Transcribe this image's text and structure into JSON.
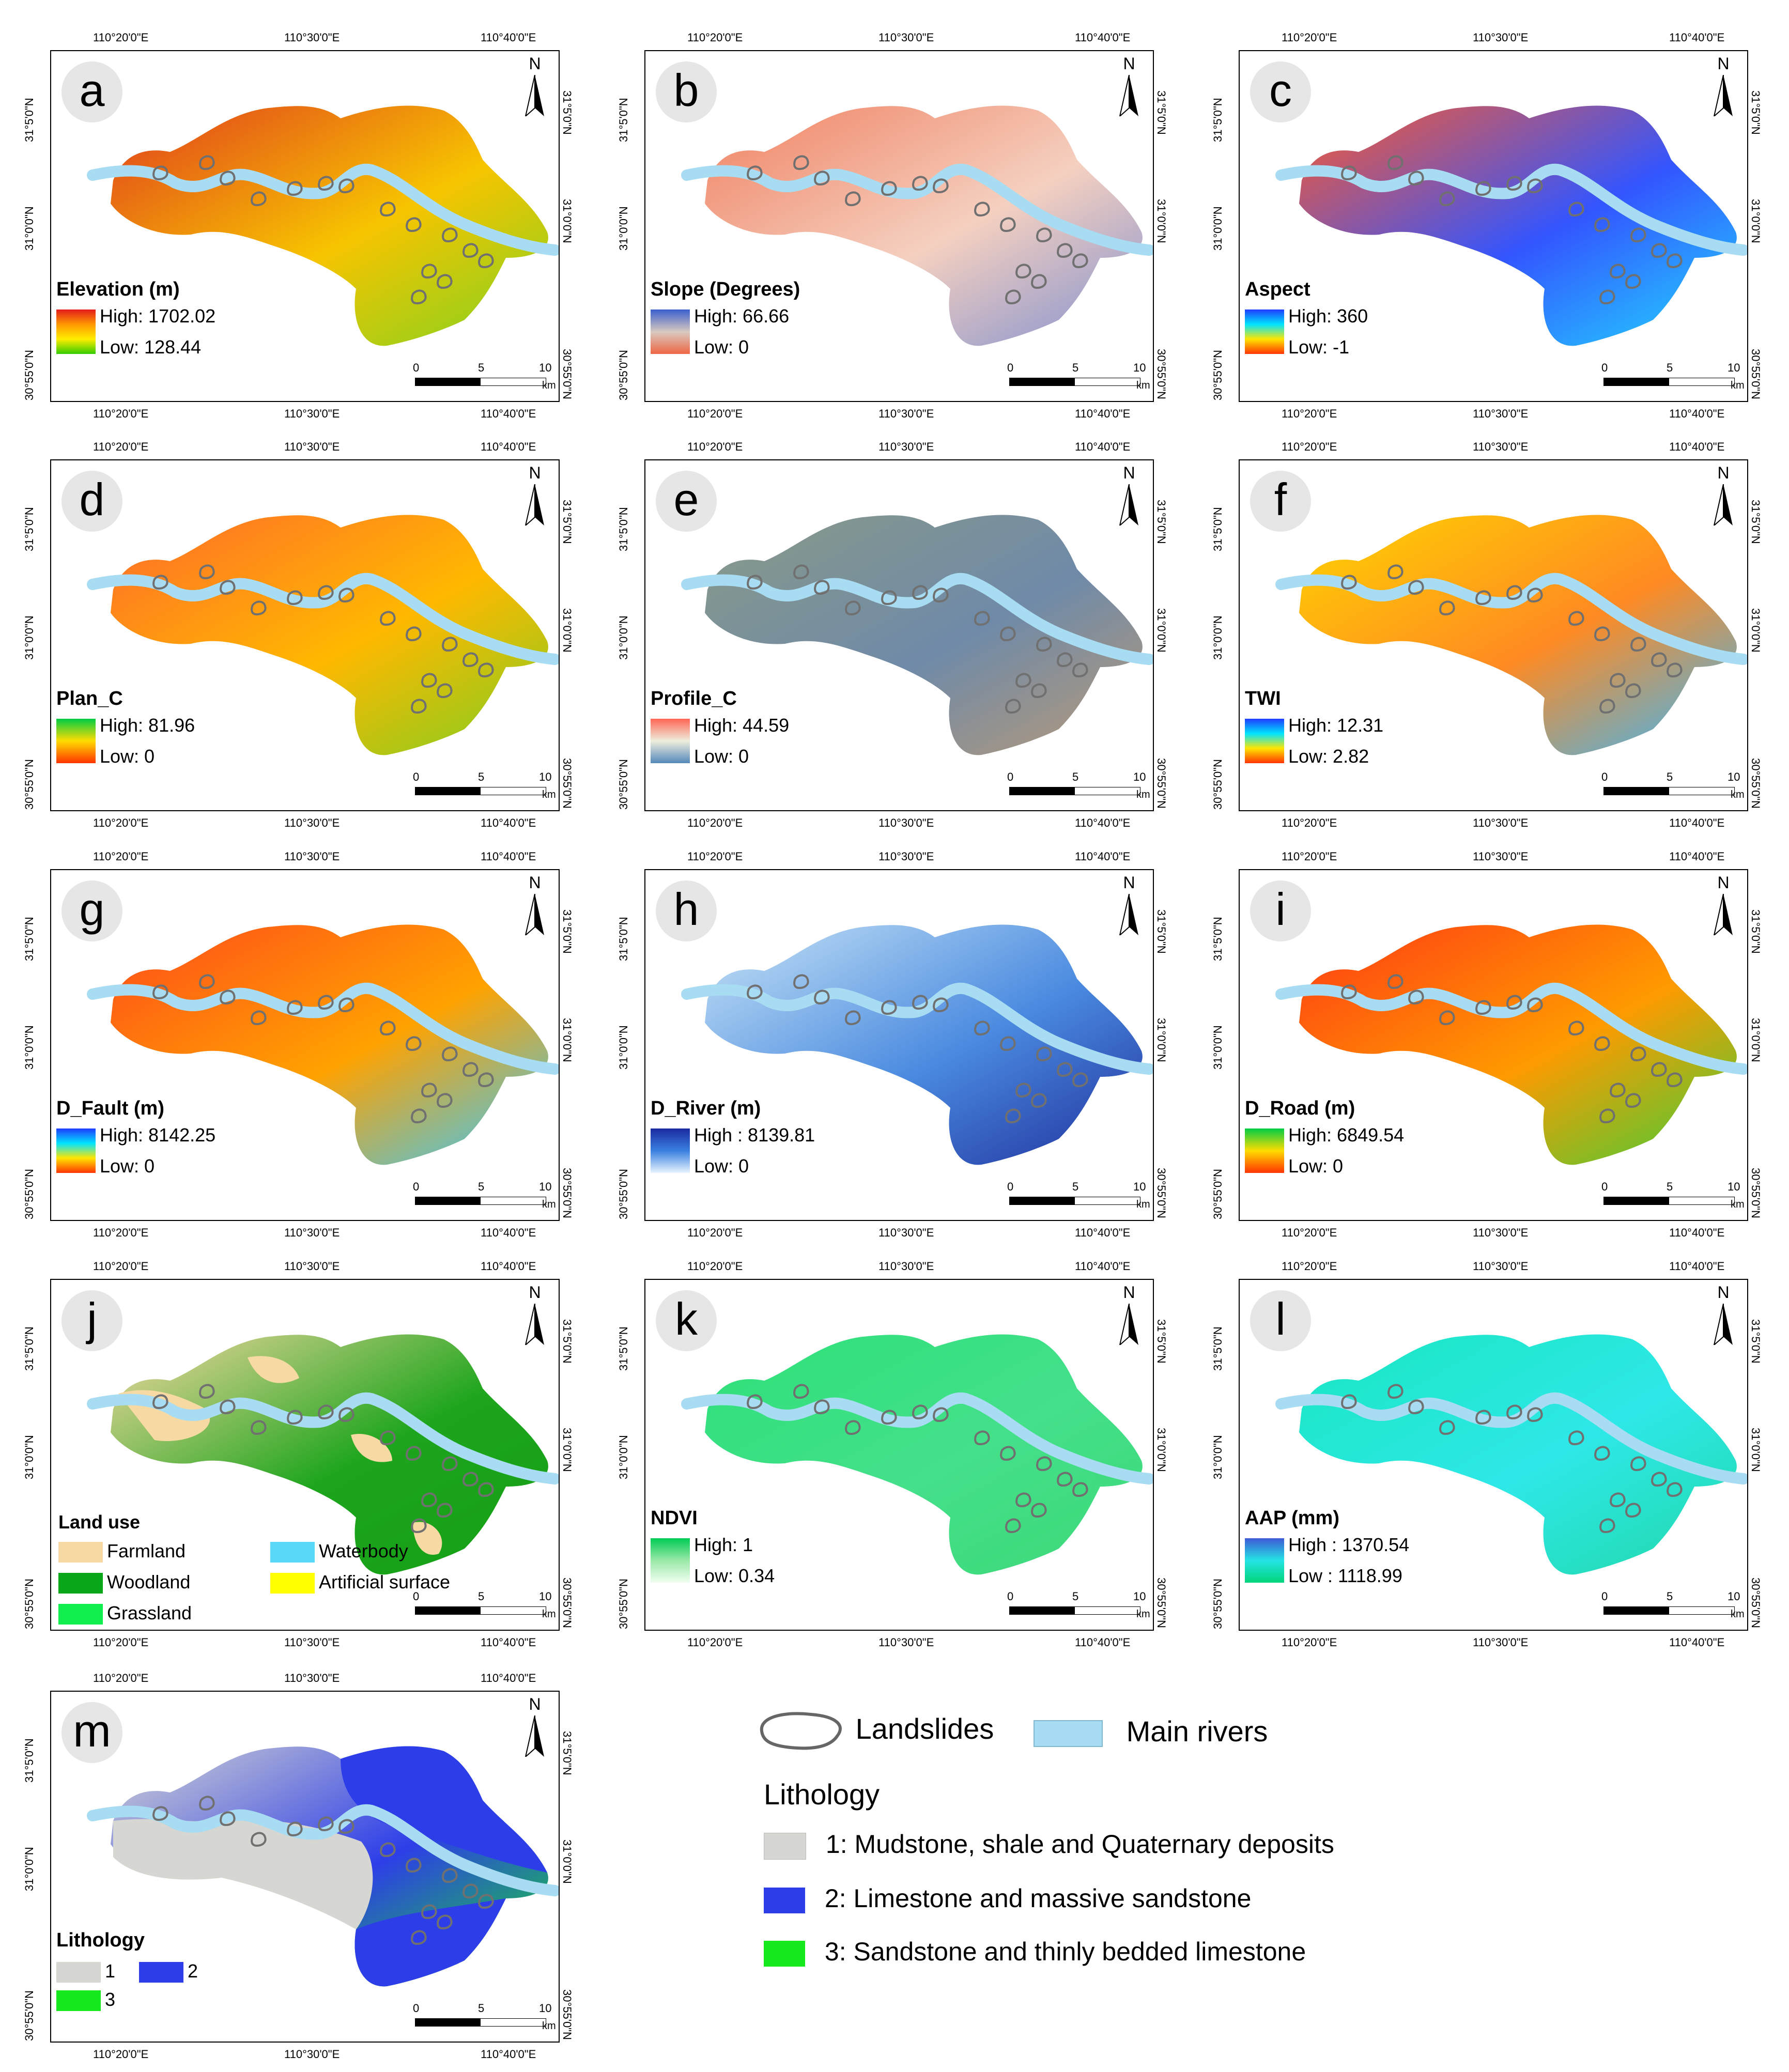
{
  "ticks": {
    "lon": [
      "110°20'0\"E",
      "110°30'0\"E",
      "110°40'0\"E"
    ],
    "lat": [
      "31°5'0\"N",
      "31°0'0\"N",
      "30°55'0\"N"
    ]
  },
  "scale_bar": {
    "labels": [
      "0",
      "5",
      "10"
    ],
    "unit": "km"
  },
  "north_label": "N",
  "panels": [
    {
      "letter": "a",
      "title": "Elevation (m)",
      "high": "High: 1702.02",
      "low": "Low: 128.44",
      "ramp": [
        "#e31a1c",
        "#ff9900",
        "#ffee00",
        "#33cc00"
      ],
      "fill": [
        "#e03b1e",
        "#f7c400",
        "#7ed321"
      ]
    },
    {
      "letter": "b",
      "title": "Slope (Degrees)",
      "high": "High: 66.66",
      "low": "Low: 0",
      "ramp": [
        "#3a5fcd",
        "#d8c9c0",
        "#ee6644"
      ],
      "fill": [
        "#f08060",
        "#f5d0c0",
        "#8090d0"
      ]
    },
    {
      "letter": "c",
      "title": "Aspect",
      "high": "High: 360",
      "low": "Low:  -1",
      "ramp": [
        "#1f3cff",
        "#00e5ff",
        "#ffe600",
        "#ff3300"
      ],
      "fill": [
        "#ff5a2a",
        "#3355ff",
        "#22d8ff"
      ]
    },
    {
      "letter": "d",
      "title": "Plan_C",
      "high": "High: 81.96",
      "low": "Low: 0",
      "ramp": [
        "#00cc44",
        "#ffdd00",
        "#ff3300"
      ],
      "fill": [
        "#ff6a2a",
        "#ffb800",
        "#7ccf22"
      ]
    },
    {
      "letter": "e",
      "title": "Profile_C",
      "high": "High: 44.59",
      "low": "Low: 0",
      "ramp": [
        "#ff6655",
        "#eeeedd",
        "#5588bb"
      ],
      "fill": [
        "#8a9a88",
        "#6f8aa8",
        "#b89a78"
      ]
    },
    {
      "letter": "f",
      "title": "TWI",
      "high": "High: 12.31",
      "low": "Low: 2.82",
      "ramp": [
        "#1f3cff",
        "#00e5ff",
        "#ffe600",
        "#ff3300"
      ],
      "fill": [
        "#ffd400",
        "#ff8a22",
        "#35b8ff"
      ]
    },
    {
      "letter": "g",
      "title": "D_Fault (m)",
      "high": "High: 8142.25",
      "low": "Low: 0",
      "ramp": [
        "#1f3cff",
        "#00e5ff",
        "#ffe600",
        "#ff3300"
      ],
      "fill": [
        "#ff4a1a",
        "#ffa200",
        "#36c8ff"
      ]
    },
    {
      "letter": "h",
      "title": "D_River (m)",
      "high": "High : 8139.81",
      "low": "Low: 0",
      "ramp": [
        "#1a2aa0",
        "#3a80e0",
        "#e8f4ff"
      ],
      "fill": [
        "#c8e4f6",
        "#4a8ae0",
        "#1f2f9c"
      ]
    },
    {
      "letter": "i",
      "title": "D_Road (m)",
      "high": "High: 6849.54",
      "low": "Low: 0",
      "ramp": [
        "#00cc44",
        "#ffdd00",
        "#ff3300"
      ],
      "fill": [
        "#ff3a14",
        "#ff9a00",
        "#3ccf3a"
      ]
    },
    {
      "letter": "j",
      "title": "",
      "high": "",
      "low": "",
      "ramp": [],
      "fill": [
        "#f7d9a3",
        "#1da51d",
        "#15a015"
      ]
    },
    {
      "letter": "k",
      "title": "NDVI",
      "high": "High: 1",
      "low": "Low: 0.34",
      "ramp": [
        "#00cc55",
        "#9ae8a8",
        "#f0fff0"
      ],
      "fill": [
        "#2ee07a",
        "#44e08a",
        "#3dd878"
      ]
    },
    {
      "letter": "l",
      "title": "AAP (mm)",
      "high": "High : 1370.54",
      "low": "Low : 1118.99",
      "ramp": [
        "#3d5ad6",
        "#24e4e4",
        "#00d47a"
      ],
      "fill": [
        "#18e6c0",
        "#2ee8e8",
        "#20d8a8"
      ]
    },
    {
      "letter": "m",
      "title": "Lithology",
      "high": "",
      "low": "",
      "ramp": [],
      "fill": [
        "#d6d6d2",
        "#2d3ee8",
        "#15e81c"
      ]
    }
  ],
  "landuse_legend": {
    "title": "Land use",
    "items": [
      {
        "label": "Farmland",
        "color": "#f7d9a3"
      },
      {
        "label": "Waterbody",
        "color": "#5ad8f8"
      },
      {
        "label": "Woodland",
        "color": "#0aa61a"
      },
      {
        "label": "Artificial surface",
        "color": "#ffff00"
      },
      {
        "label": "Grassland",
        "color": "#10ee50"
      }
    ]
  },
  "lithology_small": [
    {
      "label": "1",
      "color": "#d6d6d2"
    },
    {
      "label": "2",
      "color": "#2d3ee8"
    },
    {
      "label": "3",
      "color": "#15e81c"
    }
  ],
  "main_legend": {
    "landslides": "Landslides",
    "rivers": "Main rivers",
    "lithology_title": "Lithology",
    "lithology": [
      {
        "label": "1: Mudstone, shale and Quaternary deposits",
        "color": "#d6d6d2"
      },
      {
        "label": "2: Limestone and massive sandstone",
        "color": "#2d3ee8"
      },
      {
        "label": "3: Sandstone and thinly bedded limestone",
        "color": "#15e81c"
      }
    ]
  },
  "colors": {
    "river": "#a8dcf2",
    "landslide_stroke": "#707070"
  }
}
